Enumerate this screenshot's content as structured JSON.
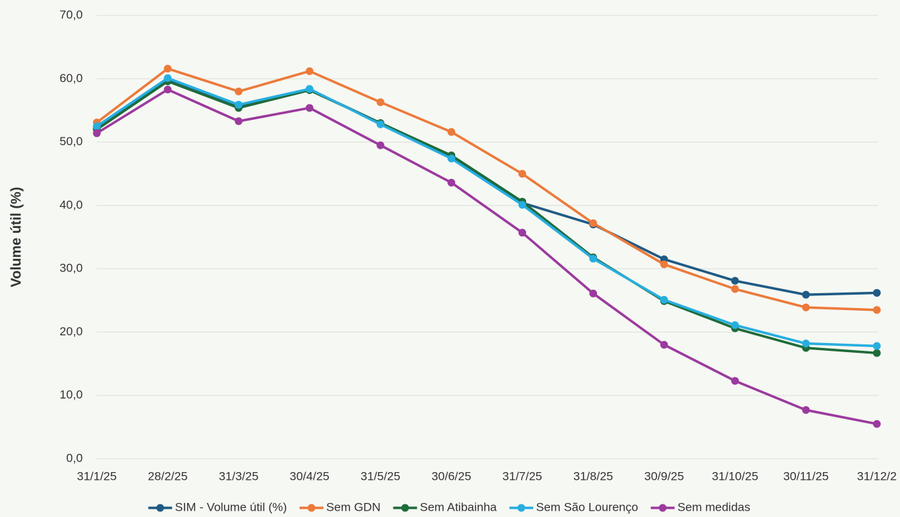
{
  "chart_data": {
    "type": "line",
    "y_label": "Volume útil (%)",
    "categories": [
      "31/1/25",
      "28/2/25",
      "31/3/25",
      "30/4/25",
      "31/5/25",
      "30/6/25",
      "31/7/25",
      "31/8/25",
      "30/9/25",
      "31/10/25",
      "30/11/25",
      "31/12/2"
    ],
    "series": [
      {
        "name": "SIM - Volume útil (%)",
        "color": "#1f5a85",
        "values": [
          52.3,
          59.8,
          55.6,
          58.3,
          53.0,
          47.8,
          40.4,
          37.0,
          31.5,
          28.1,
          25.9,
          26.2
        ]
      },
      {
        "name": "Sem GDN",
        "color": "#ec7a3a",
        "values": [
          53.1,
          61.6,
          58.0,
          61.2,
          56.3,
          51.6,
          45.0,
          37.2,
          30.7,
          26.8,
          23.9,
          23.5
        ]
      },
      {
        "name": "Sem Atibainha",
        "color": "#1e6b3a",
        "values": [
          52.0,
          59.6,
          55.4,
          58.2,
          53.0,
          47.9,
          40.6,
          31.8,
          24.9,
          20.6,
          17.5,
          16.7
        ]
      },
      {
        "name": "Sem São Lourenço",
        "color": "#27aee0",
        "values": [
          52.5,
          60.1,
          55.9,
          58.4,
          52.8,
          47.4,
          40.1,
          31.6,
          25.1,
          21.1,
          18.2,
          17.8
        ]
      },
      {
        "name": "Sem medidas",
        "color": "#9b3a9e",
        "values": [
          51.4,
          58.3,
          53.3,
          55.4,
          49.5,
          43.6,
          35.7,
          26.1,
          18.0,
          12.3,
          7.7,
          5.5
        ]
      }
    ],
    "ylim": [
      0,
      70
    ],
    "yticks": [
      {
        "value": 0,
        "label": "0,0"
      },
      {
        "value": 10,
        "label": "10,0"
      },
      {
        "value": 20,
        "label": "20,0"
      },
      {
        "value": 30,
        "label": "30,0"
      },
      {
        "value": 40,
        "label": "40,0"
      },
      {
        "value": 50,
        "label": "50,0"
      },
      {
        "value": 60,
        "label": "60,0"
      },
      {
        "value": 70,
        "label": "70,0"
      }
    ],
    "grid": true,
    "legend": "bottom"
  }
}
